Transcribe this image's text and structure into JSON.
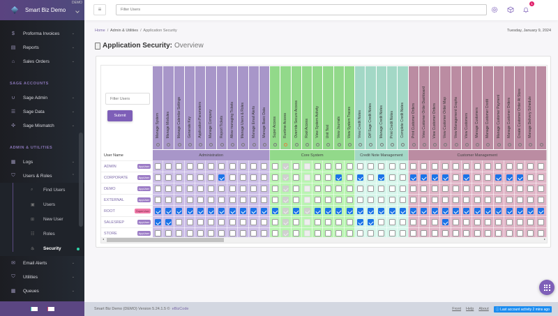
{
  "app": {
    "title": "Smart Biz Demo",
    "env_badge": "DEMO"
  },
  "sidebar": {
    "top_items": [
      {
        "label": "Proforma Invoices",
        "icon": "dollar-circle-icon"
      },
      {
        "label": "Reports",
        "icon": "report-icon"
      },
      {
        "label": "Sales Orders",
        "icon": "orders-icon"
      }
    ],
    "sage_section": "SAGE ACCOUNTS",
    "sage_items": [
      {
        "label": "Sage Admin",
        "icon": "magnet-icon"
      },
      {
        "label": "Sage Data",
        "icon": "list-icon"
      },
      {
        "label": "Sage Mismatch",
        "icon": "puzzle-icon"
      }
    ],
    "admin_section": "ADMIN & UTILITIES",
    "admin_items": [
      {
        "label": "Logs",
        "icon": "grid-icon"
      },
      {
        "label": "Users & Roles",
        "icon": "shield-icon"
      }
    ],
    "sub_items": [
      {
        "label": "Find Users",
        "icon": "search-icon"
      },
      {
        "label": "Users",
        "icon": "users-icon"
      },
      {
        "label": "New User",
        "icon": "plus-icon"
      },
      {
        "label": "Roles",
        "icon": "roles-icon"
      },
      {
        "label": "Security",
        "icon": "fire-icon",
        "active": true
      }
    ],
    "bottom_items": [
      {
        "label": "Email Alerts",
        "icon": "mail-icon"
      },
      {
        "label": "Utilities",
        "icon": "shield-icon"
      },
      {
        "label": "Queues",
        "icon": "grid-icon"
      }
    ]
  },
  "topbar": {
    "search_placeholder": "Filter Users",
    "notification_count": "1"
  },
  "breadcrumb": {
    "home": "Home",
    "section": "Admin & Utilities",
    "current": "Application Security"
  },
  "date": "Tuesday, January 9, 2024",
  "page": {
    "title": "Application Security:",
    "subtitle": "Overview"
  },
  "filter": {
    "placeholder": "Filter Users",
    "submit_label": "Submit"
  },
  "table": {
    "username_header": "User Name",
    "groups": [
      {
        "name": "Administration",
        "header_color": "#a896c9",
        "cell_color": "#cbbde6",
        "columns": [
          {
            "label": "Manage System"
          },
          {
            "label": "Manage Modules"
          },
          {
            "label": "Manage Calendar Settings"
          },
          {
            "label": "Generate Key"
          },
          {
            "label": "Application Parameters"
          },
          {
            "label": "Manage Company"
          },
          {
            "label": "Report Tickets"
          },
          {
            "label": "Allow managing Tickets"
          },
          {
            "label": "Manage Users & Roles"
          },
          {
            "label": "Manage Email Alerts"
          },
          {
            "label": "Manage Basic Data"
          }
        ]
      },
      {
        "name": "Core System",
        "header_color": "#92d98a",
        "cell_color": "#b9f4b1",
        "columns": [
          {
            "label": "Super Access"
          },
          {
            "label": "Runtime Access",
            "disabled": true,
            "warning": true
          },
          {
            "label": "Override Secure Access"
          },
          {
            "label": "Root Access",
            "disabled": true
          },
          {
            "label": "View System Activity"
          },
          {
            "label": "Unit Test"
          },
          {
            "label": "View Journals"
          },
          {
            "label": "View System Traces"
          }
        ]
      },
      {
        "name": "Credit Note Management",
        "header_color": "#a3d8c6",
        "cell_color": "#d5f5ea",
        "columns": [
          {
            "label": "View Credit Notes"
          },
          {
            "label": "Diff Sage Credit Notes"
          },
          {
            "label": "Manage Credit Notes"
          },
          {
            "label": "Print Credit Notes"
          },
          {
            "label": "Complete Credit Notes"
          }
        ]
      },
      {
        "name": "Customer Management",
        "header_color": "#bb8ca2",
        "cell_color": "#dfb3c5",
        "columns": [
          {
            "label": "Print Customer Orders"
          },
          {
            "label": "View Customer Order Dashboard"
          },
          {
            "label": "View Customer Orders"
          },
          {
            "label": "View Customer Order Map"
          },
          {
            "label": "View Management Graphs"
          },
          {
            "label": "View Customers"
          },
          {
            "label": "Manage Customers"
          },
          {
            "label": "Manage Customer Credit"
          },
          {
            "label": "Manage Customer Payment"
          },
          {
            "label": "Manage Customer Orders"
          },
          {
            "label": "Create Customer Order At Store"
          },
          {
            "label": "Manage Delivery Schedule"
          },
          {
            "label": ""
          }
        ]
      }
    ],
    "users": [
      {
        "name": "ADMIN",
        "role": "AppUser",
        "perms": [
          "00000000000",
          "01000000",
          "00000",
          "0000000000000"
        ]
      },
      {
        "name": "CORPORATE",
        "role": "AppUser",
        "perms": [
          "00000010000",
          "01000010",
          "10100",
          "1111010011100"
        ]
      },
      {
        "name": "DEMO",
        "role": "AppUser",
        "perms": [
          "00000000000",
          "01000000",
          "00000",
          "0000000000000"
        ]
      },
      {
        "name": "EXTERNAL",
        "role": "AppUser",
        "perms": [
          "00000000000",
          "01000000",
          "00000",
          "0000000000000"
        ]
      },
      {
        "name": "ROOT",
        "role": "SuperUser",
        "perms": [
          "11111111111",
          "11111111",
          "11111",
          "1111111111111"
        ]
      },
      {
        "name": "SALESREP",
        "role": "AppUser",
        "perms": [
          "11000000000",
          "01000000",
          "11000",
          "0001000000000"
        ]
      },
      {
        "name": "STORE",
        "role": "AppUser",
        "perms": [
          "00000000000",
          "01000000",
          "00000",
          "0000000000000"
        ]
      }
    ]
  },
  "footer": {
    "version": "Smart Biz Demo (DEMO) Version 5.24.1.5 ©",
    "brand": "eBizCode",
    "links": [
      "Front",
      "Help",
      "About"
    ],
    "activity": "Last account activity  2 mins ago"
  }
}
